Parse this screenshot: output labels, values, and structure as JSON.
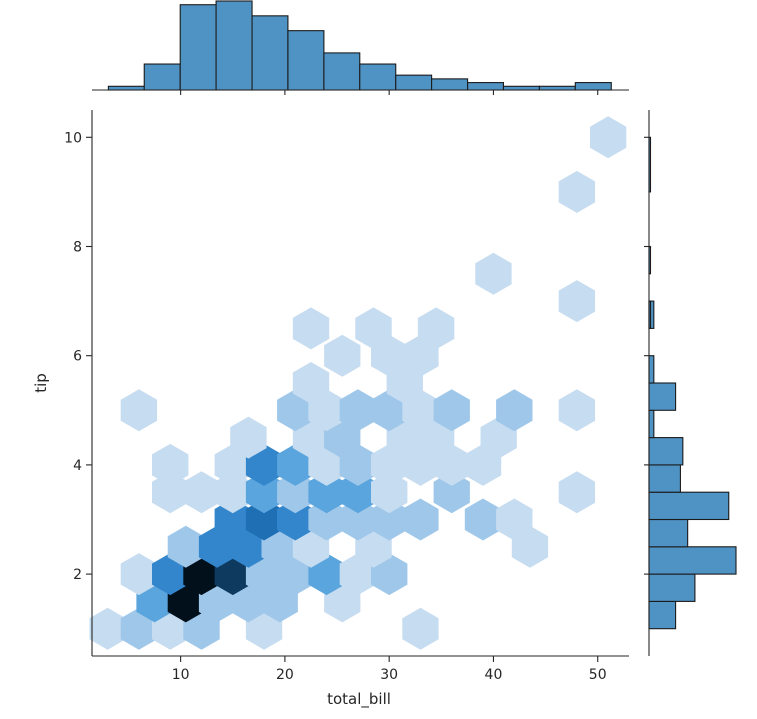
{
  "chart_data": {
    "type": "hexbin",
    "kind": "jointplot",
    "xlabel": "total_bill",
    "ylabel": "tip",
    "xlim": [
      1.5,
      53
    ],
    "ylim": [
      0.5,
      10.5
    ],
    "xticks": [
      10,
      20,
      30,
      40,
      50
    ],
    "yticks": [
      2,
      4,
      6,
      8,
      10
    ],
    "grid": false,
    "colormap": [
      "#ffffff",
      "#e7f1fb",
      "#c6dcf0",
      "#9fc7ea",
      "#5aa5dd",
      "#3386cc",
      "#1f6fb4",
      "#0f3a60",
      "#02101c"
    ],
    "hexbin": [
      {
        "x": 3.0,
        "y": 1.0,
        "count": 1
      },
      {
        "x": 6.0,
        "y": 1.0,
        "count": 2
      },
      {
        "x": 9.0,
        "y": 1.0,
        "count": 1
      },
      {
        "x": 12.0,
        "y": 1.0,
        "count": 2
      },
      {
        "x": 18.0,
        "y": 1.0,
        "count": 1
      },
      {
        "x": 33.0,
        "y": 1.0,
        "count": 1
      },
      {
        "x": 7.5,
        "y": 1.5,
        "count": 4
      },
      {
        "x": 10.5,
        "y": 1.5,
        "count": 16
      },
      {
        "x": 13.5,
        "y": 1.5,
        "count": 3
      },
      {
        "x": 16.5,
        "y": 1.5,
        "count": 2
      },
      {
        "x": 19.5,
        "y": 1.5,
        "count": 2
      },
      {
        "x": 25.5,
        "y": 1.5,
        "count": 1
      },
      {
        "x": 6.0,
        "y": 2.0,
        "count": 1
      },
      {
        "x": 9.0,
        "y": 2.0,
        "count": 6
      },
      {
        "x": 12.0,
        "y": 2.0,
        "count": 18
      },
      {
        "x": 15.0,
        "y": 2.0,
        "count": 15
      },
      {
        "x": 18.0,
        "y": 2.0,
        "count": 2
      },
      {
        "x": 21.0,
        "y": 2.0,
        "count": 2
      },
      {
        "x": 24.0,
        "y": 2.0,
        "count": 4
      },
      {
        "x": 27.0,
        "y": 2.0,
        "count": 1
      },
      {
        "x": 30.0,
        "y": 2.0,
        "count": 3
      },
      {
        "x": 10.5,
        "y": 2.5,
        "count": 3
      },
      {
        "x": 13.5,
        "y": 2.5,
        "count": 7
      },
      {
        "x": 16.5,
        "y": 2.5,
        "count": 7
      },
      {
        "x": 19.5,
        "y": 2.5,
        "count": 2
      },
      {
        "x": 22.5,
        "y": 2.5,
        "count": 1
      },
      {
        "x": 28.5,
        "y": 2.5,
        "count": 1
      },
      {
        "x": 43.5,
        "y": 2.5,
        "count": 1
      },
      {
        "x": 15.0,
        "y": 3.0,
        "count": 7
      },
      {
        "x": 18.0,
        "y": 3.0,
        "count": 9
      },
      {
        "x": 21.0,
        "y": 3.0,
        "count": 8
      },
      {
        "x": 24.0,
        "y": 3.0,
        "count": 2
      },
      {
        "x": 27.0,
        "y": 3.0,
        "count": 2
      },
      {
        "x": 30.0,
        "y": 3.0,
        "count": 2
      },
      {
        "x": 33.0,
        "y": 3.0,
        "count": 2
      },
      {
        "x": 39.0,
        "y": 3.0,
        "count": 2
      },
      {
        "x": 42.0,
        "y": 3.0,
        "count": 1
      },
      {
        "x": 9.0,
        "y": 3.5,
        "count": 1
      },
      {
        "x": 12.0,
        "y": 3.5,
        "count": 1
      },
      {
        "x": 15.0,
        "y": 3.5,
        "count": 1
      },
      {
        "x": 18.0,
        "y": 3.5,
        "count": 4
      },
      {
        "x": 21.0,
        "y": 3.5,
        "count": 3
      },
      {
        "x": 24.0,
        "y": 3.5,
        "count": 4
      },
      {
        "x": 27.0,
        "y": 3.5,
        "count": 4
      },
      {
        "x": 30.0,
        "y": 3.5,
        "count": 1
      },
      {
        "x": 36.0,
        "y": 3.5,
        "count": 2
      },
      {
        "x": 48.0,
        "y": 3.5,
        "count": 1
      },
      {
        "x": 9.0,
        "y": 4.0,
        "count": 1
      },
      {
        "x": 15.0,
        "y": 4.0,
        "count": 1
      },
      {
        "x": 18.0,
        "y": 4.0,
        "count": 6
      },
      {
        "x": 21.0,
        "y": 4.0,
        "count": 4
      },
      {
        "x": 24.0,
        "y": 4.0,
        "count": 1
      },
      {
        "x": 27.0,
        "y": 4.0,
        "count": 3
      },
      {
        "x": 30.0,
        "y": 4.0,
        "count": 1
      },
      {
        "x": 33.0,
        "y": 4.0,
        "count": 1
      },
      {
        "x": 36.0,
        "y": 4.0,
        "count": 1
      },
      {
        "x": 39.0,
        "y": 4.0,
        "count": 1
      },
      {
        "x": 16.5,
        "y": 4.5,
        "count": 1
      },
      {
        "x": 22.5,
        "y": 4.5,
        "count": 1
      },
      {
        "x": 25.5,
        "y": 4.5,
        "count": 3
      },
      {
        "x": 31.5,
        "y": 4.5,
        "count": 1
      },
      {
        "x": 34.5,
        "y": 4.5,
        "count": 1
      },
      {
        "x": 40.5,
        "y": 4.5,
        "count": 1
      },
      {
        "x": 6.0,
        "y": 5.0,
        "count": 1
      },
      {
        "x": 21.0,
        "y": 5.0,
        "count": 2
      },
      {
        "x": 24.0,
        "y": 5.0,
        "count": 1
      },
      {
        "x": 27.0,
        "y": 5.0,
        "count": 2
      },
      {
        "x": 30.0,
        "y": 5.0,
        "count": 3
      },
      {
        "x": 33.0,
        "y": 5.0,
        "count": 1
      },
      {
        "x": 36.0,
        "y": 5.0,
        "count": 3
      },
      {
        "x": 42.0,
        "y": 5.0,
        "count": 2
      },
      {
        "x": 48.0,
        "y": 5.0,
        "count": 1
      },
      {
        "x": 22.5,
        "y": 5.5,
        "count": 1
      },
      {
        "x": 31.5,
        "y": 5.5,
        "count": 1
      },
      {
        "x": 25.5,
        "y": 6.0,
        "count": 1
      },
      {
        "x": 30.0,
        "y": 6.0,
        "count": 1
      },
      {
        "x": 33.0,
        "y": 6.0,
        "count": 1
      },
      {
        "x": 22.5,
        "y": 6.5,
        "count": 1
      },
      {
        "x": 28.5,
        "y": 6.5,
        "count": 1
      },
      {
        "x": 34.5,
        "y": 6.5,
        "count": 1
      },
      {
        "x": 48.0,
        "y": 7.0,
        "count": 1
      },
      {
        "x": 40.0,
        "y": 7.5,
        "count": 1
      },
      {
        "x": 48.0,
        "y": 9.0,
        "count": 1
      },
      {
        "x": 51.0,
        "y": 10.0,
        "count": 1
      }
    ],
    "marginal_x": {
      "bin_edges": [
        3.07,
        6.51,
        9.96,
        13.4,
        16.85,
        20.29,
        23.74,
        27.18,
        30.63,
        34.07,
        37.52,
        40.96,
        44.41,
        47.85,
        51.3
      ],
      "counts": [
        1,
        7,
        23,
        24,
        20,
        16,
        10,
        7,
        4,
        3,
        2,
        1,
        1,
        2
      ]
    },
    "marginal_y": {
      "bin_edges": [
        1.0,
        1.5,
        2.0,
        2.5,
        3.0,
        3.5,
        4.0,
        4.5,
        5.0,
        5.5,
        6.0,
        6.5,
        7.0,
        7.5,
        8.0,
        8.5,
        9.0,
        9.5,
        10.0
      ],
      "counts": [
        11,
        19,
        36,
        16,
        33,
        13,
        14,
        2,
        11,
        2,
        0,
        2,
        0,
        0,
        0,
        0,
        0,
        0
      ],
      "extra": [
        {
          "y0": 6.5,
          "y1": 7.0,
          "count": 0.6
        },
        {
          "y0": 7.5,
          "y1": 8.0,
          "count": 0.6
        },
        {
          "y0": 9.0,
          "y1": 10.0,
          "count": 0.6
        }
      ]
    }
  }
}
